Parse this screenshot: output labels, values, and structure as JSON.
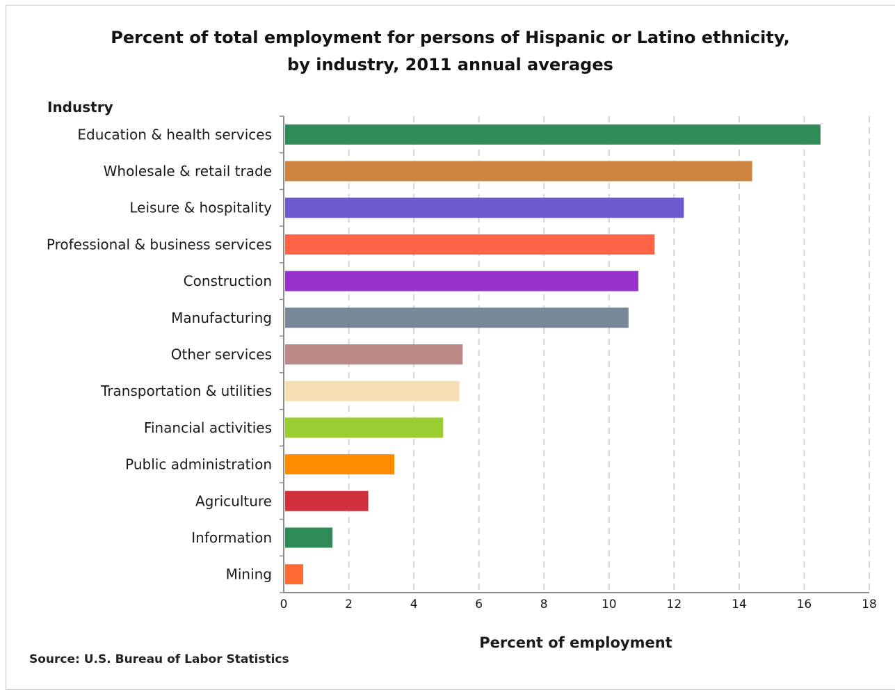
{
  "title_line1": "Percent of total employment for persons of Hispanic or Latino ethnicity,",
  "title_line2": "by industry, 2011 annual averages",
  "source": "Source: U.S. Bureau of Labor Statistics",
  "chart_data": {
    "type": "bar",
    "orientation": "horizontal",
    "title": "Percent of total employment for persons of Hispanic or Latino ethnicity, by industry, 2011 annual averages",
    "ylabel": "Industry",
    "xlabel": "Percent of employment",
    "xlim": [
      0,
      18
    ],
    "xticks": [
      0,
      2,
      4,
      6,
      8,
      10,
      12,
      14,
      16,
      18
    ],
    "grid": "vertical dashed",
    "categories": [
      "Education & health services",
      "Wholesale & retail trade",
      "Leisure & hospitality",
      "Professional & business services",
      "Construction",
      "Manufacturing",
      "Other services",
      "Transportation & utilities",
      "Financial activities",
      "Public administration",
      "Agriculture",
      "Information",
      "Mining"
    ],
    "values": [
      16.5,
      14.4,
      12.3,
      11.4,
      10.9,
      10.6,
      5.5,
      5.4,
      4.9,
      3.4,
      2.6,
      1.5,
      0.6
    ],
    "colors": [
      "#2e8b57",
      "#cd853f",
      "#6a5acd",
      "#ff6347",
      "#9932cc",
      "#778899",
      "#bc8a86",
      "#f5deb3",
      "#9acd32",
      "#ff8c00",
      "#d0313d",
      "#2e8b57",
      "#ff6a33"
    ]
  }
}
